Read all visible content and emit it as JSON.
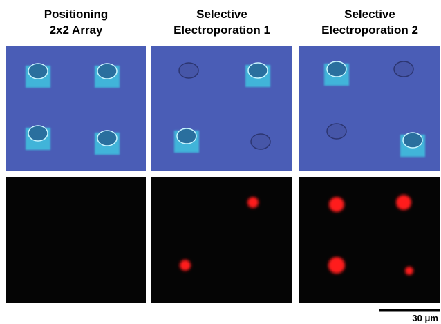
{
  "columns": [
    {
      "title": [
        "Positioning",
        "2x2 Array"
      ]
    },
    {
      "title": [
        "Selective",
        "Electroporation 1"
      ]
    },
    {
      "title": [
        "Selective",
        "Electroporation 2"
      ]
    }
  ],
  "scale_bar": {
    "label": "30 μm"
  }
}
